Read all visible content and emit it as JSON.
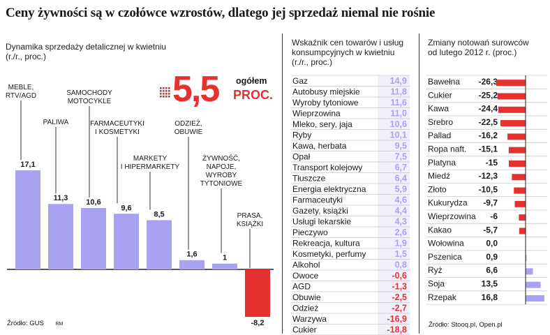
{
  "title": "Ceny żywności są w czołówce wzrostów, dlatego jej sprzedaż niemal nie rośnie",
  "colors": {
    "purple": "#a9a2f2",
    "red": "#e7312f",
    "axis": "#222222",
    "text": "#1a1a1a"
  },
  "chart_data": [
    {
      "type": "bar",
      "title": "Dynamika sprzedaży detalicznej w kwietniu",
      "subtitle": "(r./r., proc.)",
      "headline": {
        "value": "5,5",
        "label_top": "ogółem",
        "label_bottom": "PROC."
      },
      "categories": [
        [
          "MEBLE,",
          "RTV/AGD"
        ],
        [
          "PALIWA"
        ],
        [
          "SAMOCHODY",
          "MOTOCYKLE"
        ],
        [
          "FARMACEUTYKI",
          "I KOSMETYKI"
        ],
        [
          "MARKETY",
          "I HIPERMARKETY"
        ],
        [
          "ODZIEŻ,",
          "OBUWIE"
        ],
        [
          "ŻYWNOŚĆ,",
          "NAPOJE,",
          "WYROBY",
          "TYTONIOWE"
        ],
        [
          "PRASA,",
          "KSIĄŻKI"
        ]
      ],
      "values": [
        17.1,
        11.3,
        10.6,
        9.6,
        8.5,
        1.6,
        1,
        -8.2
      ],
      "value_labels": [
        "17,1",
        "11,3",
        "10,6",
        "9,6",
        "8,5",
        "1,6",
        "1",
        "-8,2"
      ],
      "source": "Źródło: GUS",
      "author": "RM",
      "ylim": [
        -8.2,
        17.1
      ]
    },
    {
      "type": "table",
      "title": "Wskaźnik cen towarów i usług konsumpcyjnych w kwietniu",
      "title_lines": [
        "Wskaźnik cen towarów i usług",
        "konsumpcyjnych w kwietniu",
        "(r./r., proc.)"
      ],
      "rows": [
        {
          "label": "Gaz",
          "value": "14,9"
        },
        {
          "label": "Autobusy miejskie",
          "value": "11,8"
        },
        {
          "label": "Wyroby tytoniowe",
          "value": "11,6"
        },
        {
          "label": "Wieprzowina",
          "value": "11,0"
        },
        {
          "label": "Mleko, sery, jaja",
          "value": "10,6"
        },
        {
          "label": "Ryby",
          "value": "10,1"
        },
        {
          "label": "Kawa, herbata",
          "value": "9,5"
        },
        {
          "label": "Opał",
          "value": "7,5"
        },
        {
          "label": "Transport kolejowy",
          "value": "6,7"
        },
        {
          "label": "Tłuszcze",
          "value": "6,4"
        },
        {
          "label": "Energia elektryczna",
          "value": "5,9"
        },
        {
          "label": "Farmaceutyki",
          "value": "4,6"
        },
        {
          "label": "Gazety, książki",
          "value": "4,4"
        },
        {
          "label": "Usługi lekarskie",
          "value": "4,3"
        },
        {
          "label": "Pieczywo",
          "value": "2,6"
        },
        {
          "label": "Rekreacja, kultura",
          "value": "1,9"
        },
        {
          "label": "Kosmetyki, perfumy",
          "value": "1,5"
        },
        {
          "label": "Alkohol",
          "value": "0,8"
        },
        {
          "label": "Owoce",
          "value": "-0,6"
        },
        {
          "label": "AGD",
          "value": "-1,3"
        },
        {
          "label": "Obuwie",
          "value": "-2,5"
        },
        {
          "label": "Odzież",
          "value": "-2,7"
        },
        {
          "label": "Warzywa",
          "value": "-16,9"
        },
        {
          "label": "Cukier",
          "value": "-18,8"
        }
      ]
    },
    {
      "type": "bar",
      "orientation": "horizontal",
      "title": "Zmiany notowań surowców od lutego 2012 r.",
      "title_lines": [
        "Zmiany notowań surowców",
        "od lutego 2012 r. (proc.)"
      ],
      "categories": [
        "Bawełna",
        "Cukier",
        "Kawa",
        "Srebro",
        "Pallad",
        "Ropa naft.",
        "Platyna",
        "Miedź",
        "Złoto",
        "Kukurydza",
        "Wieprzowina",
        "Kakao",
        "Wołowina",
        "Pszenica",
        "Ryż",
        "Soja",
        "Rzepak"
      ],
      "values": [
        -26.3,
        -25.2,
        -24.4,
        -22.5,
        -16.2,
        -15.1,
        -15,
        -12.3,
        -10.5,
        -9.7,
        -6,
        -5.7,
        0.0,
        0.9,
        6.6,
        13.5,
        16.8
      ],
      "value_labels": [
        "-26,3",
        "-25,2",
        "-24,4",
        "-22,5",
        "-16,2",
        "-15,1",
        "-15",
        "-12,3",
        "-10,5",
        "-9,7",
        "-6",
        "-5,7",
        "0,0",
        "0,9",
        "6,6",
        "13,5",
        "16,8"
      ],
      "source": "Źródło: Stooq.pl, Open.pl"
    }
  ]
}
